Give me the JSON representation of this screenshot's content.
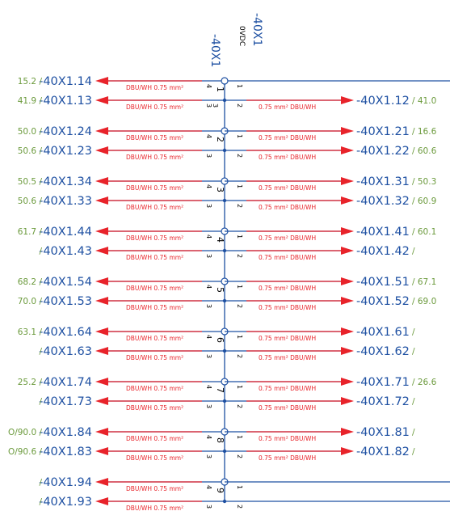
{
  "header": {
    "left_label": "-40X1",
    "right_label": "-40X1",
    "right_sublabel": "0VDC"
  },
  "wire_spec": {
    "left": "DBU/WH   0.75 mm²",
    "right": "0.75 mm²   DBU/WH"
  },
  "colors": {
    "terminal_text": "#1e50a2",
    "reference_text": "#6b9a3c",
    "wire_text": "#e8232a",
    "bus_line": "#1e50a2",
    "arrow": "#e8232a"
  },
  "groups": [
    {
      "terminal_number": "1",
      "right_bus_top": true,
      "rows": [
        {
          "left_ref": "15.2 /",
          "left_term": "-40X1.14",
          "left_pin": "4",
          "left_mid_pin": "",
          "right_pin": "1",
          "right_term": "",
          "right_ref": "",
          "left_arrow": true,
          "right_arrow": false
        },
        {
          "left_ref": "41.9 /",
          "left_term": "-40X1.13",
          "left_pin": "3",
          "left_mid_pin": "3",
          "right_pin": "2",
          "right_term": "-40X1.12",
          "right_ref": "/ 41.0",
          "left_arrow": true,
          "right_arrow": true
        }
      ]
    },
    {
      "terminal_number": "2",
      "rows": [
        {
          "left_ref": "50.0 /",
          "left_term": "-40X1.24",
          "left_pin": "4",
          "right_pin": "1",
          "right_term": "-40X1.21",
          "right_ref": "/ 16.6",
          "left_arrow": true,
          "right_arrow": true
        },
        {
          "left_ref": "50.6 /",
          "left_term": "-40X1.23",
          "left_pin": "3",
          "right_pin": "2",
          "right_term": "-40X1.22",
          "right_ref": "/ 60.6",
          "left_arrow": true,
          "right_arrow": true
        }
      ]
    },
    {
      "terminal_number": "3",
      "rows": [
        {
          "left_ref": "50.5 /",
          "left_term": "-40X1.34",
          "left_pin": "4",
          "right_pin": "1",
          "right_term": "-40X1.31",
          "right_ref": "/ 50.3",
          "left_arrow": true,
          "right_arrow": true
        },
        {
          "left_ref": "50.6 /",
          "left_term": "-40X1.33",
          "left_pin": "3",
          "right_pin": "2",
          "right_term": "-40X1.32",
          "right_ref": "/ 60.9",
          "left_arrow": true,
          "right_arrow": true
        }
      ]
    },
    {
      "terminal_number": "4",
      "rows": [
        {
          "left_ref": "61.7 /",
          "left_term": "-40X1.44",
          "left_pin": "4",
          "right_pin": "1",
          "right_term": "-40X1.41",
          "right_ref": "/ 60.1",
          "left_arrow": true,
          "right_arrow": true
        },
        {
          "left_ref": "/",
          "left_term": "-40X1.43",
          "left_pin": "3",
          "right_pin": "2",
          "right_term": "-40X1.42",
          "right_ref": "/",
          "left_arrow": true,
          "right_arrow": true
        }
      ]
    },
    {
      "terminal_number": "5",
      "rows": [
        {
          "left_ref": "68.2 /",
          "left_term": "-40X1.54",
          "left_pin": "4",
          "right_pin": "1",
          "right_term": "-40X1.51",
          "right_ref": "/ 67.1",
          "left_arrow": true,
          "right_arrow": true
        },
        {
          "left_ref": "70.0 /",
          "left_term": "-40X1.53",
          "left_pin": "3",
          "right_pin": "2",
          "right_term": "-40X1.52",
          "right_ref": "/ 69.0",
          "left_arrow": true,
          "right_arrow": true
        }
      ]
    },
    {
      "terminal_number": "6",
      "rows": [
        {
          "left_ref": "63.1 /",
          "left_term": "-40X1.64",
          "left_pin": "4",
          "right_pin": "1",
          "right_term": "-40X1.61",
          "right_ref": "/",
          "left_arrow": true,
          "right_arrow": true
        },
        {
          "left_ref": "/",
          "left_term": "-40X1.63",
          "left_pin": "3",
          "right_pin": "2",
          "right_term": "-40X1.62",
          "right_ref": "/",
          "left_arrow": true,
          "right_arrow": true
        }
      ]
    },
    {
      "terminal_number": "7",
      "rows": [
        {
          "left_ref": "25.2 /",
          "left_term": "-40X1.74",
          "left_pin": "4",
          "right_pin": "1",
          "right_term": "-40X1.71",
          "right_ref": "/ 26.6",
          "left_arrow": true,
          "right_arrow": true
        },
        {
          "left_ref": "/",
          "left_term": "-40X1.73",
          "left_pin": "3",
          "right_pin": "2",
          "right_term": "-40X1.72",
          "right_ref": "/",
          "left_arrow": true,
          "right_arrow": true
        }
      ]
    },
    {
      "terminal_number": "8",
      "rows": [
        {
          "left_ref": "O/90.0 /",
          "left_term": "-40X1.84",
          "left_pin": "4",
          "right_pin": "1",
          "right_term": "-40X1.81",
          "right_ref": "/",
          "left_arrow": true,
          "right_arrow": true
        },
        {
          "left_ref": "O/90.6 /",
          "left_term": "-40X1.83",
          "left_pin": "3",
          "right_pin": "2",
          "right_term": "-40X1.82",
          "right_ref": "/",
          "left_arrow": true,
          "right_arrow": true
        }
      ]
    },
    {
      "terminal_number": "9",
      "right_bus": true,
      "rows": [
        {
          "left_ref": "/",
          "left_term": "-40X1.94",
          "left_pin": "4",
          "right_pin": "1",
          "right_term": "",
          "right_ref": "",
          "left_arrow": true,
          "right_arrow": false
        },
        {
          "left_ref": "/",
          "left_term": "-40X1.93",
          "left_pin": "3",
          "right_pin": "2",
          "right_term": "",
          "right_ref": "",
          "left_arrow": true,
          "right_arrow": false
        }
      ]
    }
  ]
}
